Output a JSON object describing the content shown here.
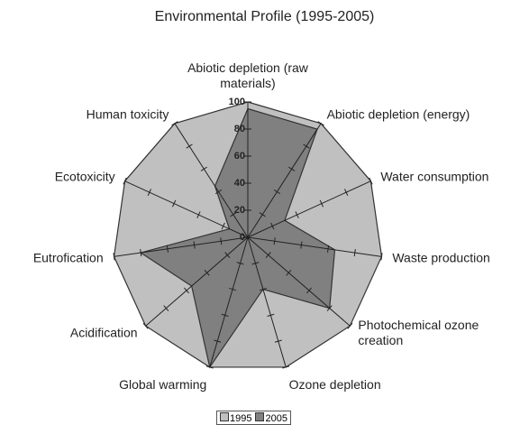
{
  "chart_data": {
    "type": "radar",
    "title": "Environmental Profile (1995-2005)",
    "categories": [
      "Abiotic depletion (raw materials)",
      "Abiotic depletion (energy)",
      "Water consumption",
      "Waste production",
      "Photochemical ozone creation",
      "Ozone depletion",
      "Global warming",
      "Acidification",
      "Eutrofication",
      "Ecotoxicity",
      "Human toxicity"
    ],
    "series": [
      {
        "name": "1995",
        "color": "#c0c0c0",
        "values": [
          100,
          100,
          100,
          100,
          100,
          100,
          100,
          100,
          100,
          100,
          100
        ]
      },
      {
        "name": "2005",
        "color": "#808080",
        "values": [
          95,
          95,
          30,
          65,
          80,
          40,
          100,
          55,
          80,
          15,
          45
        ]
      }
    ],
    "rlim": [
      0,
      100
    ],
    "rticks": [
      0,
      20,
      40,
      60,
      80,
      100
    ]
  }
}
